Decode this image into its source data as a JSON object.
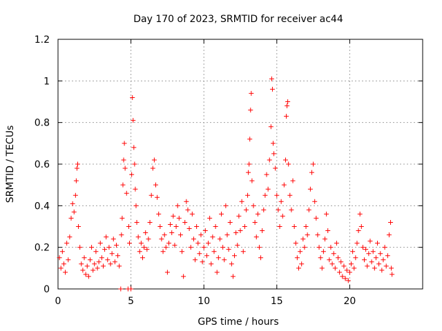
{
  "chart_data": {
    "type": "scatter",
    "title": "Day 170 of 2023, SRMTID for receiver ac44",
    "xlabel": "GPS time / hours",
    "ylabel": "SRMTID / TECUs",
    "xlim": [
      0,
      25
    ],
    "ylim": [
      0,
      1.2
    ],
    "xticks": [
      0,
      5,
      10,
      15,
      20
    ],
    "xtick_labels": [
      "0",
      "5",
      "10",
      "15",
      "20"
    ],
    "yticks": [
      0,
      0.2,
      0.4,
      0.6,
      0.8,
      1,
      1.2
    ],
    "ytick_labels": [
      "0",
      "0.2",
      "0.4",
      "0.6",
      "0.8",
      "1",
      "1.2"
    ],
    "grid": true,
    "marker": "+",
    "color": "#ff0000",
    "series": [
      {
        "name": "SRMTID",
        "points": [
          [
            0.1,
            0.15
          ],
          [
            0.2,
            0.1
          ],
          [
            0.3,
            0.18
          ],
          [
            0.4,
            0.12
          ],
          [
            0.5,
            0.08
          ],
          [
            0.6,
            0.22
          ],
          [
            0.7,
            0.14
          ],
          [
            0.8,
            0.25
          ],
          [
            0.9,
            0.34
          ],
          [
            1.0,
            0.41
          ],
          [
            1.1,
            0.37
          ],
          [
            1.2,
            0.45
          ],
          [
            1.25,
            0.52
          ],
          [
            1.3,
            0.58
          ],
          [
            1.35,
            0.6
          ],
          [
            1.4,
            0.3
          ],
          [
            1.5,
            0.2
          ],
          [
            1.6,
            0.12
          ],
          [
            1.7,
            0.09
          ],
          [
            1.8,
            0.15
          ],
          [
            1.9,
            0.07
          ],
          [
            2.0,
            0.11
          ],
          [
            2.1,
            0.06
          ],
          [
            2.2,
            0.14
          ],
          [
            2.3,
            0.2
          ],
          [
            2.4,
            0.09
          ],
          [
            2.5,
            0.12
          ],
          [
            2.6,
            0.18
          ],
          [
            2.7,
            0.1
          ],
          [
            2.8,
            0.13
          ],
          [
            2.9,
            0.22
          ],
          [
            3.0,
            0.15
          ],
          [
            3.1,
            0.11
          ],
          [
            3.2,
            0.19
          ],
          [
            3.3,
            0.25
          ],
          [
            3.4,
            0.14
          ],
          [
            3.5,
            0.2
          ],
          [
            3.6,
            0.12
          ],
          [
            3.7,
            0.17
          ],
          [
            3.8,
            0.24
          ],
          [
            3.9,
            0.13
          ],
          [
            4.0,
            0.21
          ],
          [
            4.1,
            0.16
          ],
          [
            4.2,
            0.11
          ],
          [
            4.3,
            0.0
          ],
          [
            4.35,
            0.26
          ],
          [
            4.4,
            0.34
          ],
          [
            4.45,
            0.5
          ],
          [
            4.5,
            0.62
          ],
          [
            4.55,
            0.7
          ],
          [
            4.6,
            0.58
          ],
          [
            4.7,
            0.46
          ],
          [
            4.8,
            0.0
          ],
          [
            4.85,
            0.3
          ],
          [
            4.9,
            0.22
          ],
          [
            5.0,
            0.0
          ],
          [
            5.05,
            0.55
          ],
          [
            5.1,
            0.92
          ],
          [
            5.15,
            0.81
          ],
          [
            5.2,
            0.68
          ],
          [
            5.25,
            0.6
          ],
          [
            5.3,
            0.48
          ],
          [
            5.35,
            0.4
          ],
          [
            5.4,
            0.32
          ],
          [
            5.5,
            0.25
          ],
          [
            5.6,
            0.18
          ],
          [
            5.7,
            0.22
          ],
          [
            5.8,
            0.15
          ],
          [
            5.9,
            0.2
          ],
          [
            6.0,
            0.27
          ],
          [
            6.1,
            0.19
          ],
          [
            6.2,
            0.24
          ],
          [
            6.3,
            0.32
          ],
          [
            6.4,
            0.45
          ],
          [
            6.5,
            0.58
          ],
          [
            6.6,
            0.62
          ],
          [
            6.7,
            0.5
          ],
          [
            6.8,
            0.44
          ],
          [
            6.9,
            0.36
          ],
          [
            7.0,
            0.3
          ],
          [
            7.1,
            0.24
          ],
          [
            7.2,
            0.18
          ],
          [
            7.3,
            0.26
          ],
          [
            7.4,
            0.2
          ],
          [
            7.5,
            0.08
          ],
          [
            7.6,
            0.22
          ],
          [
            7.7,
            0.31
          ],
          [
            7.8,
            0.27
          ],
          [
            7.9,
            0.35
          ],
          [
            8.0,
            0.21
          ],
          [
            8.1,
            0.3
          ],
          [
            8.2,
            0.4
          ],
          [
            8.3,
            0.34
          ],
          [
            8.4,
            0.26
          ],
          [
            8.5,
            0.18
          ],
          [
            8.6,
            0.06
          ],
          [
            8.7,
            0.32
          ],
          [
            8.8,
            0.42
          ],
          [
            8.9,
            0.38
          ],
          [
            9.0,
            0.29
          ],
          [
            9.1,
            0.2
          ],
          [
            9.2,
            0.36
          ],
          [
            9.3,
            0.24
          ],
          [
            9.4,
            0.14
          ],
          [
            9.5,
            0.3
          ],
          [
            9.6,
            0.22
          ],
          [
            9.7,
            0.17
          ],
          [
            9.8,
            0.26
          ],
          [
            9.9,
            0.13
          ],
          [
            10.0,
            0.2
          ],
          [
            10.1,
            0.28
          ],
          [
            10.2,
            0.16
          ],
          [
            10.3,
            0.22
          ],
          [
            10.4,
            0.34
          ],
          [
            10.5,
            0.12
          ],
          [
            10.6,
            0.25
          ],
          [
            10.7,
            0.18
          ],
          [
            10.8,
            0.3
          ],
          [
            10.9,
            0.08
          ],
          [
            11.0,
            0.15
          ],
          [
            11.1,
            0.24
          ],
          [
            11.2,
            0.36
          ],
          [
            11.3,
            0.2
          ],
          [
            11.4,
            0.14
          ],
          [
            11.5,
            0.4
          ],
          [
            11.6,
            0.26
          ],
          [
            11.7,
            0.19
          ],
          [
            11.8,
            0.32
          ],
          [
            11.9,
            0.12
          ],
          [
            12.0,
            0.06
          ],
          [
            12.1,
            0.16
          ],
          [
            12.2,
            0.27
          ],
          [
            12.3,
            0.21
          ],
          [
            12.4,
            0.35
          ],
          [
            12.5,
            0.28
          ],
          [
            12.6,
            0.42
          ],
          [
            12.7,
            0.18
          ],
          [
            12.8,
            0.3
          ],
          [
            12.9,
            0.38
          ],
          [
            13.0,
            0.45
          ],
          [
            13.05,
            0.56
          ],
          [
            13.1,
            0.6
          ],
          [
            13.15,
            0.72
          ],
          [
            13.2,
            0.86
          ],
          [
            13.25,
            0.94
          ],
          [
            13.3,
            0.52
          ],
          [
            13.4,
            0.4
          ],
          [
            13.5,
            0.32
          ],
          [
            13.6,
            0.25
          ],
          [
            13.7,
            0.36
          ],
          [
            13.8,
            0.2
          ],
          [
            13.9,
            0.15
          ],
          [
            14.0,
            0.28
          ],
          [
            14.1,
            0.38
          ],
          [
            14.2,
            0.45
          ],
          [
            14.3,
            0.55
          ],
          [
            14.4,
            0.48
          ],
          [
            14.5,
            0.62
          ],
          [
            14.6,
            0.78
          ],
          [
            14.65,
            1.01
          ],
          [
            14.7,
            0.96
          ],
          [
            14.75,
            0.7
          ],
          [
            14.8,
            0.65
          ],
          [
            14.9,
            0.58
          ],
          [
            15.0,
            0.45
          ],
          [
            15.1,
            0.38
          ],
          [
            15.2,
            0.3
          ],
          [
            15.3,
            0.42
          ],
          [
            15.4,
            0.35
          ],
          [
            15.5,
            0.5
          ],
          [
            15.6,
            0.62
          ],
          [
            15.65,
            0.83
          ],
          [
            15.7,
            0.88
          ],
          [
            15.75,
            0.9
          ],
          [
            15.8,
            0.6
          ],
          [
            15.9,
            0.45
          ],
          [
            16.0,
            0.38
          ],
          [
            16.1,
            0.52
          ],
          [
            16.2,
            0.3
          ],
          [
            16.3,
            0.22
          ],
          [
            16.4,
            0.15
          ],
          [
            16.5,
            0.1
          ],
          [
            16.6,
            0.18
          ],
          [
            16.7,
            0.12
          ],
          [
            16.8,
            0.24
          ],
          [
            16.9,
            0.2
          ],
          [
            17.0,
            0.3
          ],
          [
            17.1,
            0.26
          ],
          [
            17.2,
            0.38
          ],
          [
            17.3,
            0.48
          ],
          [
            17.4,
            0.56
          ],
          [
            17.5,
            0.6
          ],
          [
            17.6,
            0.42
          ],
          [
            17.7,
            0.34
          ],
          [
            17.8,
            0.26
          ],
          [
            17.9,
            0.2
          ],
          [
            18.0,
            0.15
          ],
          [
            18.1,
            0.1
          ],
          [
            18.2,
            0.18
          ],
          [
            18.3,
            0.24
          ],
          [
            18.4,
            0.36
          ],
          [
            18.5,
            0.28
          ],
          [
            18.6,
            0.14
          ],
          [
            18.7,
            0.2
          ],
          [
            18.8,
            0.12
          ],
          [
            18.9,
            0.17
          ],
          [
            19.0,
            0.1
          ],
          [
            19.1,
            0.22
          ],
          [
            19.2,
            0.15
          ],
          [
            19.3,
            0.08
          ],
          [
            19.4,
            0.13
          ],
          [
            19.5,
            0.06
          ],
          [
            19.6,
            0.11
          ],
          [
            19.7,
            0.05
          ],
          [
            19.8,
            0.09
          ],
          [
            19.9,
            0.04
          ],
          [
            20.0,
            0.08
          ],
          [
            20.1,
            0.12
          ],
          [
            20.2,
            0.18
          ],
          [
            20.3,
            0.1
          ],
          [
            20.4,
            0.15
          ],
          [
            20.5,
            0.22
          ],
          [
            20.6,
            0.28
          ],
          [
            20.7,
            0.36
          ],
          [
            20.8,
            0.3
          ],
          [
            20.9,
            0.2
          ],
          [
            21.0,
            0.14
          ],
          [
            21.1,
            0.19
          ],
          [
            21.2,
            0.11
          ],
          [
            21.3,
            0.17
          ],
          [
            21.4,
            0.23
          ],
          [
            21.5,
            0.13
          ],
          [
            21.6,
            0.18
          ],
          [
            21.7,
            0.1
          ],
          [
            21.8,
            0.15
          ],
          [
            21.9,
            0.22
          ],
          [
            22.0,
            0.12
          ],
          [
            22.1,
            0.17
          ],
          [
            22.2,
            0.09
          ],
          [
            22.3,
            0.14
          ],
          [
            22.4,
            0.2
          ],
          [
            22.5,
            0.11
          ],
          [
            22.6,
            0.16
          ],
          [
            22.7,
            0.26
          ],
          [
            22.8,
            0.32
          ],
          [
            22.85,
            0.1
          ],
          [
            22.9,
            0.07
          ]
        ]
      }
    ]
  }
}
